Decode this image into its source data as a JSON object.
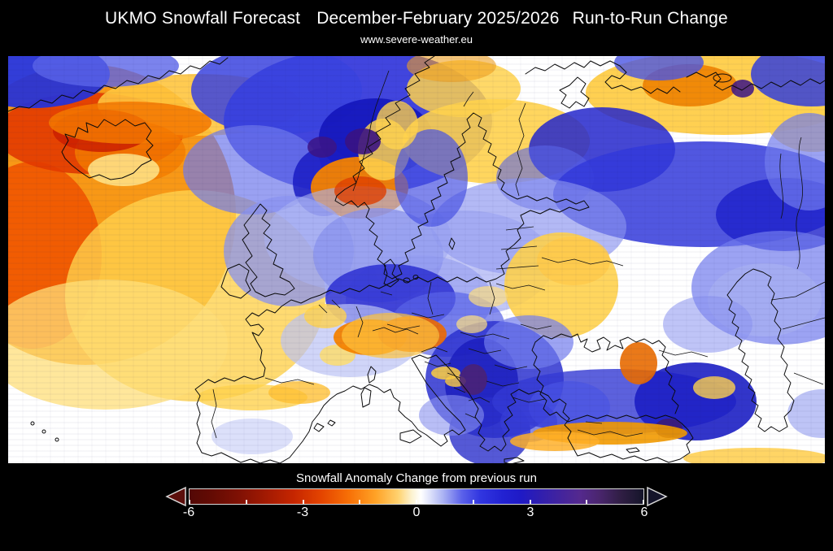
{
  "header": {
    "title_part1": "UKMO Snowfall Forecast",
    "title_part2": "December-February 2025/2026",
    "title_part3": "Run-to-Run Change",
    "subtitle": "www.severe-weather.eu"
  },
  "colorbar": {
    "label": "Snowfall Anomaly Change from previous run",
    "ticks": [
      "-6",
      "-3",
      "0",
      "3",
      "6"
    ],
    "range_min": -6,
    "range_max": 6,
    "arrow_left_color": "#5c0f0c",
    "arrow_right_color": "#14142a",
    "outline_color": "#d9d9d9",
    "gradient": [
      {
        "p": 0,
        "c": "#530806"
      },
      {
        "p": 5,
        "c": "#640b03"
      },
      {
        "p": 11,
        "c": "#801104"
      },
      {
        "p": 17,
        "c": "#a31a02"
      },
      {
        "p": 23,
        "c": "#c62600"
      },
      {
        "p": 29,
        "c": "#e44400"
      },
      {
        "p": 35,
        "c": "#f76f06"
      },
      {
        "p": 41,
        "c": "#ffa226"
      },
      {
        "p": 46,
        "c": "#ffd270"
      },
      {
        "p": 49,
        "c": "#fcf3d2"
      },
      {
        "p": 51,
        "c": "#ffffff"
      },
      {
        "p": 53,
        "c": "#dde1fa"
      },
      {
        "p": 56,
        "c": "#a8b0f3"
      },
      {
        "p": 60,
        "c": "#5b61ea"
      },
      {
        "p": 64,
        "c": "#3136e0"
      },
      {
        "p": 69,
        "c": "#2222d2"
      },
      {
        "p": 73,
        "c": "#1f1ac6"
      },
      {
        "p": 77,
        "c": "#2f1eb0"
      },
      {
        "p": 82,
        "c": "#44249c"
      },
      {
        "p": 86,
        "c": "#54298e"
      },
      {
        "p": 90,
        "c": "#4b2670"
      },
      {
        "p": 95,
        "c": "#301e44"
      },
      {
        "p": 100,
        "c": "#15152a"
      }
    ]
  },
  "chart_data": {
    "type": "heatmap",
    "title": "UKMO Snowfall Forecast December-February 2025/2026 Run-to-Run Change",
    "source": "www.severe-weather.eu",
    "region": "Europe and the North Atlantic",
    "colorbar_label": "Snowfall Anomaly Change from previous run",
    "ticks": [
      -6,
      -3,
      0,
      3,
      6
    ],
    "range": [
      -6,
      6
    ],
    "anomaly_features": [
      {
        "area": "North Atlantic south/east of Greenland",
        "change": -3
      },
      {
        "area": "Iceland",
        "change": -2
      },
      {
        "area": "Norwegian Sea / Arctic front",
        "change": 2.5
      },
      {
        "area": "Southern Norway",
        "change": -2.5
      },
      {
        "area": "Lapland / Finland",
        "change": -1
      },
      {
        "area": "Arctic coast of Russia",
        "change": -1.5
      },
      {
        "area": "Karelia / Northwest Russia",
        "change": 2
      },
      {
        "area": "Central Europe (Germany/Czechia)",
        "change": 2
      },
      {
        "area": "Alps",
        "change": -2
      },
      {
        "area": "Ukraine / Belarus",
        "change": -1
      },
      {
        "area": "Balkans (Albania / North Macedonia)",
        "change": 3.5
      },
      {
        "area": "Greece",
        "change": 2.5
      },
      {
        "area": "Eastern Turkey",
        "change": 3
      },
      {
        "area": "Southern Turkey coast",
        "change": -1.5
      },
      {
        "area": "Caucasus",
        "change": -2
      },
      {
        "area": "Iberia and open Atlantic",
        "change": 0
      }
    ],
    "heat_blobs": [
      [
        95,
        195,
        185,
        185,
        "#f8920a",
        0.95
      ],
      [
        30,
        245,
        85,
        115,
        "#ef5500",
        0.9
      ],
      [
        100,
        95,
        115,
        50,
        "#e23a00",
        0.9
      ],
      [
        115,
        92,
        60,
        26,
        "#cd1f00",
        0.85
      ],
      [
        230,
        295,
        160,
        130,
        "#ffd24d",
        0.8
      ],
      [
        120,
        355,
        150,
        80,
        "#ffdf7a",
        0.75
      ],
      [
        235,
        60,
        125,
        38,
        "#ffc53e",
        0.9
      ],
      [
        150,
        82,
        100,
        26,
        "#f47800",
        0.85
      ],
      [
        150,
        118,
        68,
        38,
        "#f47d00",
        0.8
      ],
      [
        142,
        140,
        44,
        20,
        "#ffe184",
        0.9
      ],
      [
        30,
        22,
        95,
        42,
        "#2733d6",
        0.95
      ],
      [
        120,
        12,
        90,
        26,
        "#5a64e8",
        0.8
      ],
      [
        430,
        80,
        165,
        90,
        "#2c31da",
        0.9
      ],
      [
        330,
        42,
        105,
        55,
        "#3a43df",
        0.85
      ],
      [
        452,
        100,
        70,
        48,
        "#1416bd",
        0.9
      ],
      [
        436,
        105,
        22,
        16,
        "#3a1383",
        0.9
      ],
      [
        300,
        140,
        85,
        55,
        "#6f79ec",
        0.7
      ],
      [
        388,
        155,
        38,
        42,
        "#1a1cc4",
        0.85
      ],
      [
        386,
        112,
        18,
        13,
        "#3c1486",
        0.85
      ],
      [
        432,
        162,
        60,
        38,
        "#f58300",
        0.95
      ],
      [
        433,
        166,
        32,
        18,
        "#e04000",
        0.8
      ],
      [
        462,
        115,
        32,
        38,
        "#ffd24d",
        0.85
      ],
      [
        478,
        85,
        26,
        30,
        "#ffd24d",
        0.8
      ],
      [
        345,
        240,
        80,
        68,
        "#8a93f0",
        0.75
      ],
      [
        455,
        245,
        80,
        58,
        "#5a64e8",
        0.75
      ],
      [
        430,
        225,
        115,
        65,
        "#aab3f1",
        0.6
      ],
      [
        505,
        300,
        90,
        55,
        "#8a93f0",
        0.6
      ],
      [
        600,
        105,
        115,
        52,
        "#ffd24d",
        0.9
      ],
      [
        560,
        40,
        70,
        35,
        "#ffd24d",
        0.85
      ],
      [
        545,
        12,
        55,
        20,
        "#f0a020",
        0.6
      ],
      [
        880,
        45,
        170,
        52,
        "#ffcc42",
        0.92
      ],
      [
        838,
        36,
        58,
        26,
        "#f08200",
        0.9
      ],
      [
        990,
        70,
        62,
        48,
        "#ffd24d",
        0.85
      ],
      [
        800,
        8,
        55,
        22,
        "#4a55e5",
        0.8
      ],
      [
        988,
        22,
        75,
        40,
        "#3440dc",
        0.85
      ],
      [
        903,
        40,
        14,
        11,
        "#3c1486",
        0.85
      ],
      [
        730,
        115,
        90,
        52,
        "#2427cc",
        0.85
      ],
      [
        660,
        150,
        60,
        40,
        "#5a64e8",
        0.6
      ],
      [
        855,
        170,
        185,
        65,
        "#323ada",
        0.85
      ],
      [
        955,
        195,
        85,
        45,
        "#1d20cb",
        0.8
      ],
      [
        950,
        285,
        110,
        70,
        "#727cee",
        0.7
      ],
      [
        640,
        210,
        120,
        60,
        "#8a93f0",
        0.65
      ],
      [
        560,
        255,
        110,
        65,
        "#99a2f2",
        0.6
      ],
      [
        520,
        150,
        45,
        60,
        "#4a54e4",
        0.7
      ],
      [
        470,
        298,
        80,
        42,
        "#2b2fd2",
        0.85
      ],
      [
        540,
        330,
        70,
        40,
        "#5a64e8",
        0.7
      ],
      [
        420,
        350,
        85,
        45,
        "#bcc3f5",
        0.7
      ],
      [
        390,
        320,
        26,
        15,
        "#ffd24d",
        0.8
      ],
      [
        405,
        368,
        22,
        13,
        "#ffdd66",
        0.8
      ],
      [
        445,
        346,
        45,
        22,
        "#f58300",
        0.95
      ],
      [
        497,
        342,
        42,
        22,
        "#ee6a00",
        0.9
      ],
      [
        470,
        344,
        60,
        28,
        "#ffc53e",
        0.7
      ],
      [
        538,
        390,
        18,
        8,
        "#ffd040",
        0.85
      ],
      [
        550,
        400,
        13,
        7,
        "#ffd040",
        0.8
      ],
      [
        680,
        282,
        70,
        65,
        "#ffd24d",
        0.9
      ],
      [
        695,
        252,
        45,
        30,
        "#ffc94a",
        0.8
      ],
      [
        590,
        296,
        24,
        13,
        "#ffe080",
        0.7
      ],
      [
        570,
        330,
        19,
        11,
        "#ffe080",
        0.7
      ],
      [
        598,
        398,
        85,
        72,
        "#2d32d0",
        0.85
      ],
      [
        582,
        402,
        45,
        55,
        "#1c1fc0",
        0.85
      ],
      [
        572,
        398,
        17,
        19,
        "#4a2277",
        0.9
      ],
      [
        592,
        462,
        50,
        42,
        "#2b2fcc",
        0.8
      ],
      [
        545,
        442,
        40,
        25,
        "#8a93f0",
        0.6
      ],
      [
        745,
        425,
        150,
        40,
        "#3339d5",
        0.8
      ],
      [
        690,
        432,
        50,
        32,
        "#4a54e4",
        0.7
      ],
      [
        640,
        450,
        35,
        25,
        "#3940d8",
        0.6
      ],
      [
        845,
        425,
        75,
        48,
        "#1c1fc4",
        0.9
      ],
      [
        812,
        458,
        17,
        12,
        "#3d1b72",
        0.85
      ],
      [
        740,
        464,
        95,
        14,
        "#f29a00",
        0.9
      ],
      [
        672,
        474,
        55,
        12,
        "#ffb028",
        0.85
      ],
      [
        775,
        378,
        23,
        26,
        "#e86a00",
        0.9
      ],
      [
        868,
        408,
        26,
        14,
        "#ffd24d",
        0.8
      ],
      [
        920,
        495,
        90,
        13,
        "#ffce4a",
        0.85
      ],
      [
        1000,
        440,
        42,
        30,
        "#a3abf2",
        0.7
      ],
      [
        640,
        352,
        55,
        33,
        "#737dee",
        0.7
      ],
      [
        930,
        300,
        70,
        45,
        "#aab3f1",
        0.6
      ],
      [
        860,
        330,
        55,
        35,
        "#8a93f0",
        0.55
      ],
      [
        985,
        130,
        55,
        60,
        "#727cee",
        0.7
      ],
      [
        300,
        420,
        68,
        16,
        "#ffd24d",
        0.8
      ],
      [
        358,
        414,
        38,
        14,
        "#ffc035",
        0.8
      ],
      [
        300,
        468,
        50,
        22,
        "#c9cff7",
        0.65
      ]
    ]
  }
}
